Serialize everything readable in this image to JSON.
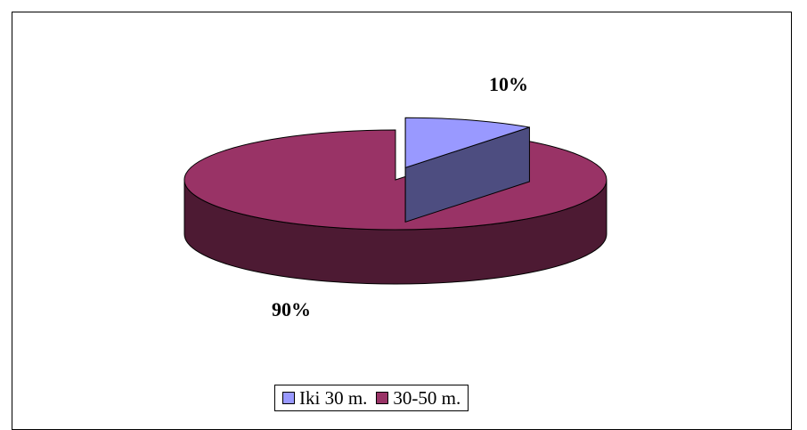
{
  "chart_data": {
    "type": "pie",
    "style": "3d",
    "categories": [
      "Iki 30 m.",
      "30-50 m."
    ],
    "values": [
      10,
      90
    ],
    "labels": [
      "10%",
      "90%"
    ],
    "colors": [
      "#9999FF",
      "#993366"
    ],
    "side_colors": [
      "#4D4D80",
      "#4D1A33"
    ],
    "legend_position": "bottom",
    "exploded": [
      true,
      false
    ]
  }
}
